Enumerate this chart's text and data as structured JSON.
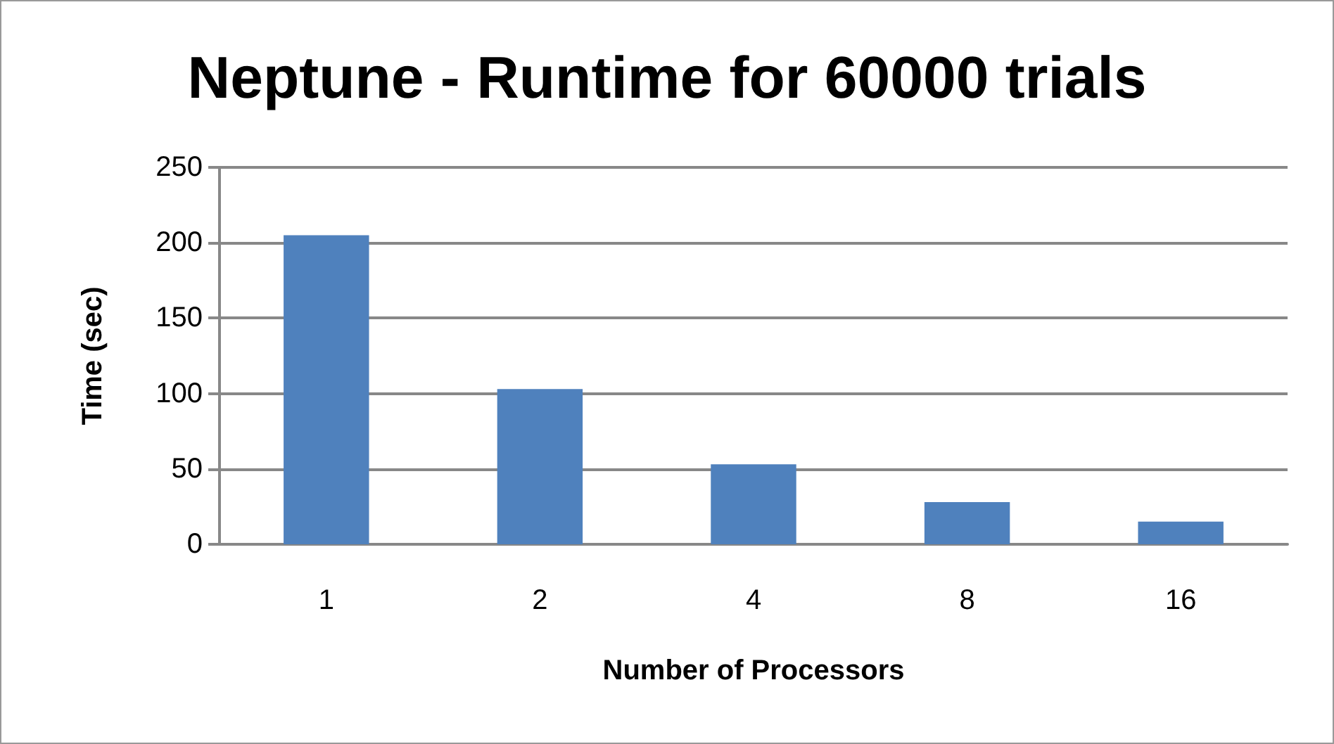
{
  "chart_data": {
    "type": "bar",
    "title": "Neptune - Runtime for 60000 trials",
    "xlabel": "Number of Processors",
    "ylabel": "Time (sec)",
    "categories": [
      "1",
      "2",
      "4",
      "8",
      "16"
    ],
    "values": [
      205,
      103,
      53,
      28,
      15
    ],
    "color": "#4f81bd",
    "ylim": [
      0,
      250
    ],
    "yticks": [
      0,
      50,
      100,
      150,
      200,
      250
    ],
    "grid": "y"
  }
}
